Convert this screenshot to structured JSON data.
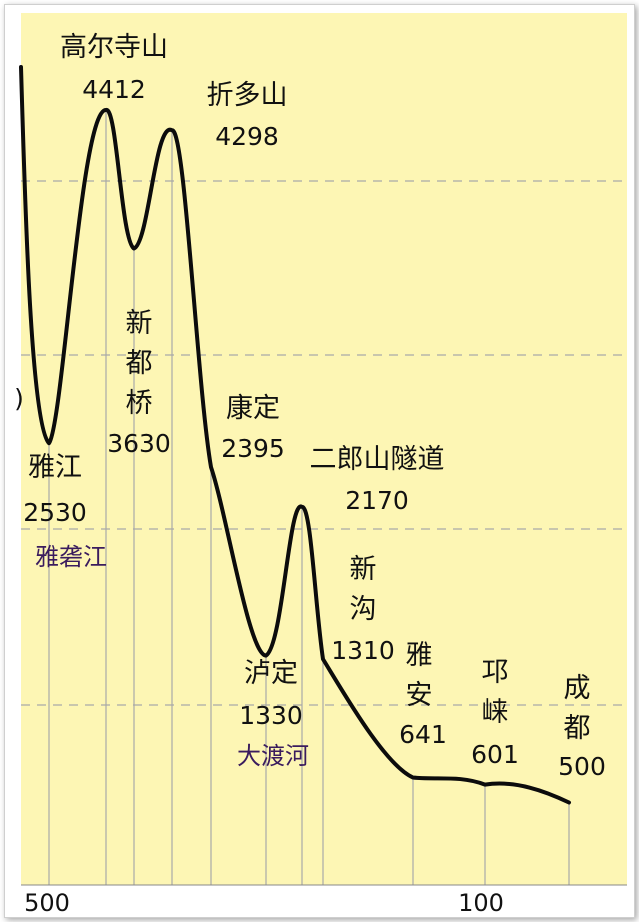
{
  "chart_data": {
    "type": "line",
    "title": "",
    "xlabel": "",
    "ylabel": "",
    "x_tick_labels": [
      "500",
      "100"
    ],
    "colors": {
      "background": "#fdf6b4",
      "line": "#0c0c0c",
      "grid": "#a9a9a9",
      "river_text": "#3a1c5e"
    },
    "points": [
      {
        "name": "雅江",
        "elevation": 2530,
        "river": "雅砻江"
      },
      {
        "name": "高尔寺山",
        "elevation": 4412
      },
      {
        "name": "新都桥",
        "elevation": 3630
      },
      {
        "name": "折多山",
        "elevation": 4298
      },
      {
        "name": "康定",
        "elevation": 2395
      },
      {
        "name": "泸定",
        "elevation": 1330,
        "river": "大渡河"
      },
      {
        "name": "二郎山隧道",
        "elevation": 2170
      },
      {
        "name": "新沟",
        "elevation": 1310
      },
      {
        "name": "雅安",
        "elevation": 641
      },
      {
        "name": "邛崃",
        "elevation": 601
      },
      {
        "name": "成都",
        "elevation": 500
      }
    ],
    "left_edge_fragment": ")"
  }
}
